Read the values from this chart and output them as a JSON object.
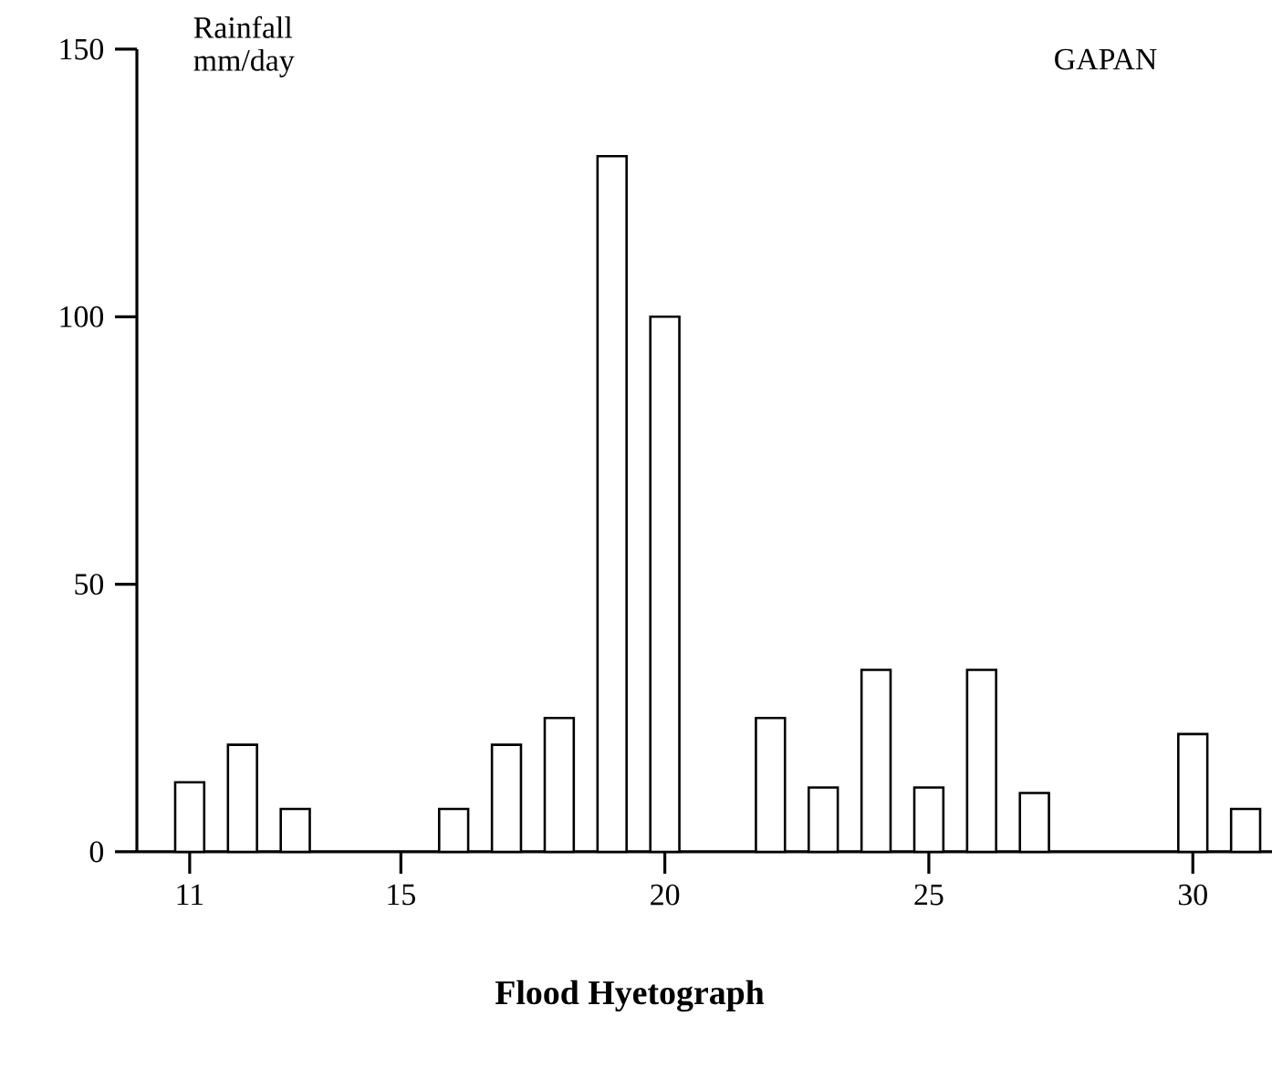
{
  "chart_data": {
    "type": "bar",
    "title": "Flood Hyetograph",
    "ylabel": "Rainfall mm/day",
    "annotations": [
      "GAPAN"
    ],
    "x": [
      11,
      12,
      13,
      16,
      17,
      18,
      19,
      20,
      22,
      23,
      24,
      25,
      26,
      27,
      30,
      31
    ],
    "values": [
      13,
      20,
      8,
      8,
      20,
      25,
      130,
      100,
      25,
      12,
      34,
      12,
      34,
      11,
      22,
      8
    ],
    "color": "#ffffff",
    "xlim": [
      10,
      31.5
    ],
    "ylim": [
      0,
      150
    ],
    "xticks": [
      11,
      15,
      20,
      25,
      30
    ],
    "yticks": [
      0,
      50,
      100,
      150
    ]
  }
}
